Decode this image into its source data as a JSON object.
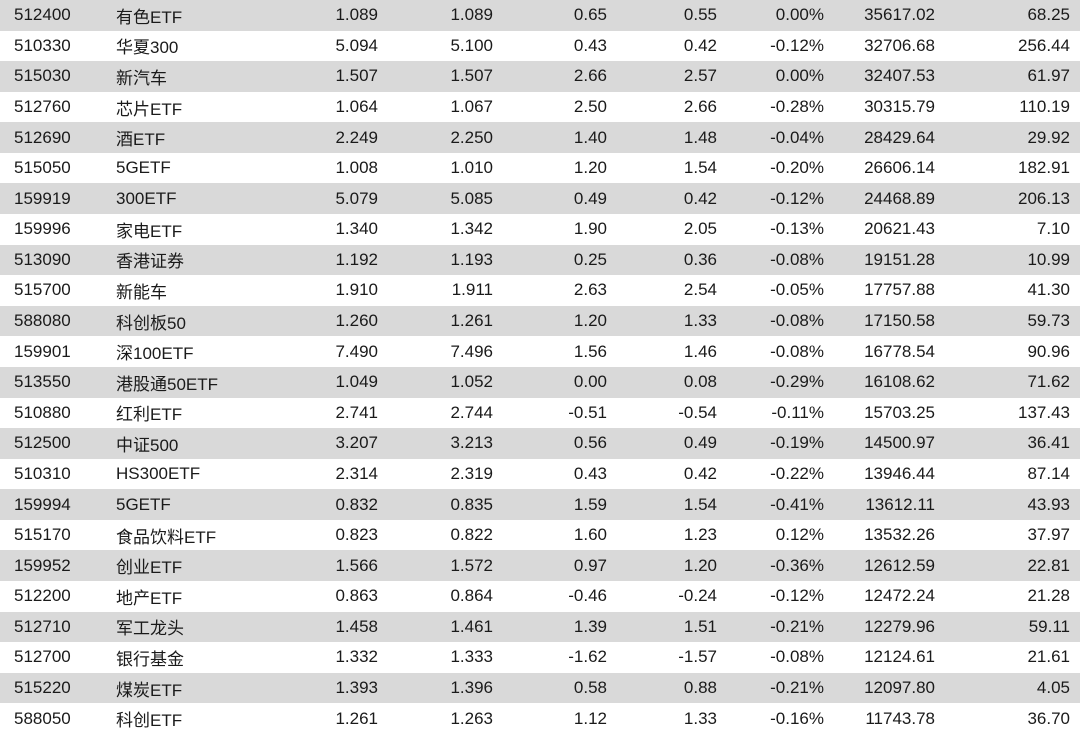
{
  "rows": [
    [
      "512400",
      "有色ETF",
      "1.089",
      "1.089",
      "0.65",
      "0.55",
      "0.00%",
      "35617.02",
      "68.25"
    ],
    [
      "510330",
      "华夏300",
      "5.094",
      "5.100",
      "0.43",
      "0.42",
      "-0.12%",
      "32706.68",
      "256.44"
    ],
    [
      "515030",
      "新汽车",
      "1.507",
      "1.507",
      "2.66",
      "2.57",
      "0.00%",
      "32407.53",
      "61.97"
    ],
    [
      "512760",
      "芯片ETF",
      "1.064",
      "1.067",
      "2.50",
      "2.66",
      "-0.28%",
      "30315.79",
      "110.19"
    ],
    [
      "512690",
      "酒ETF",
      "2.249",
      "2.250",
      "1.40",
      "1.48",
      "-0.04%",
      "28429.64",
      "29.92"
    ],
    [
      "515050",
      "5GETF",
      "1.008",
      "1.010",
      "1.20",
      "1.54",
      "-0.20%",
      "26606.14",
      "182.91"
    ],
    [
      "159919",
      "300ETF",
      "5.079",
      "5.085",
      "0.49",
      "0.42",
      "-0.12%",
      "24468.89",
      "206.13"
    ],
    [
      "159996",
      "家电ETF",
      "1.340",
      "1.342",
      "1.90",
      "2.05",
      "-0.13%",
      "20621.43",
      "7.10"
    ],
    [
      "513090",
      "香港证券",
      "1.192",
      "1.193",
      "0.25",
      "0.36",
      "-0.08%",
      "19151.28",
      "10.99"
    ],
    [
      "515700",
      "新能车",
      "1.910",
      "1.911",
      "2.63",
      "2.54",
      "-0.05%",
      "17757.88",
      "41.30"
    ],
    [
      "588080",
      "科创板50",
      "1.260",
      "1.261",
      "1.20",
      "1.33",
      "-0.08%",
      "17150.58",
      "59.73"
    ],
    [
      "159901",
      "深100ETF",
      "7.490",
      "7.496",
      "1.56",
      "1.46",
      "-0.08%",
      "16778.54",
      "90.96"
    ],
    [
      "513550",
      "港股通50ETF",
      "1.049",
      "1.052",
      "0.00",
      "0.08",
      "-0.29%",
      "16108.62",
      "71.62"
    ],
    [
      "510880",
      "红利ETF",
      "2.741",
      "2.744",
      "-0.51",
      "-0.54",
      "-0.11%",
      "15703.25",
      "137.43"
    ],
    [
      "512500",
      "中证500",
      "3.207",
      "3.213",
      "0.56",
      "0.49",
      "-0.19%",
      "14500.97",
      "36.41"
    ],
    [
      "510310",
      "HS300ETF",
      "2.314",
      "2.319",
      "0.43",
      "0.42",
      "-0.22%",
      "13946.44",
      "87.14"
    ],
    [
      "159994",
      "5GETF",
      "0.832",
      "0.835",
      "1.59",
      "1.54",
      "-0.41%",
      "13612.11",
      "43.93"
    ],
    [
      "515170",
      "食品饮料ETF",
      "0.823",
      "0.822",
      "1.60",
      "1.23",
      "0.12%",
      "13532.26",
      "37.97"
    ],
    [
      "159952",
      "创业ETF",
      "1.566",
      "1.572",
      "0.97",
      "1.20",
      "-0.36%",
      "12612.59",
      "22.81"
    ],
    [
      "512200",
      "地产ETF",
      "0.863",
      "0.864",
      "-0.46",
      "-0.24",
      "-0.12%",
      "12472.24",
      "21.28"
    ],
    [
      "512710",
      "军工龙头",
      "1.458",
      "1.461",
      "1.39",
      "1.51",
      "-0.21%",
      "12279.96",
      "59.11"
    ],
    [
      "512700",
      "银行基金",
      "1.332",
      "1.333",
      "-1.62",
      "-1.57",
      "-0.08%",
      "12124.61",
      "21.61"
    ],
    [
      "515220",
      "煤炭ETF",
      "1.393",
      "1.396",
      "0.58",
      "0.88",
      "-0.21%",
      "12097.80",
      "4.05"
    ],
    [
      "588050",
      "科创ETF",
      "1.261",
      "1.263",
      "1.12",
      "1.33",
      "-0.16%",
      "11743.78",
      "36.70"
    ]
  ]
}
